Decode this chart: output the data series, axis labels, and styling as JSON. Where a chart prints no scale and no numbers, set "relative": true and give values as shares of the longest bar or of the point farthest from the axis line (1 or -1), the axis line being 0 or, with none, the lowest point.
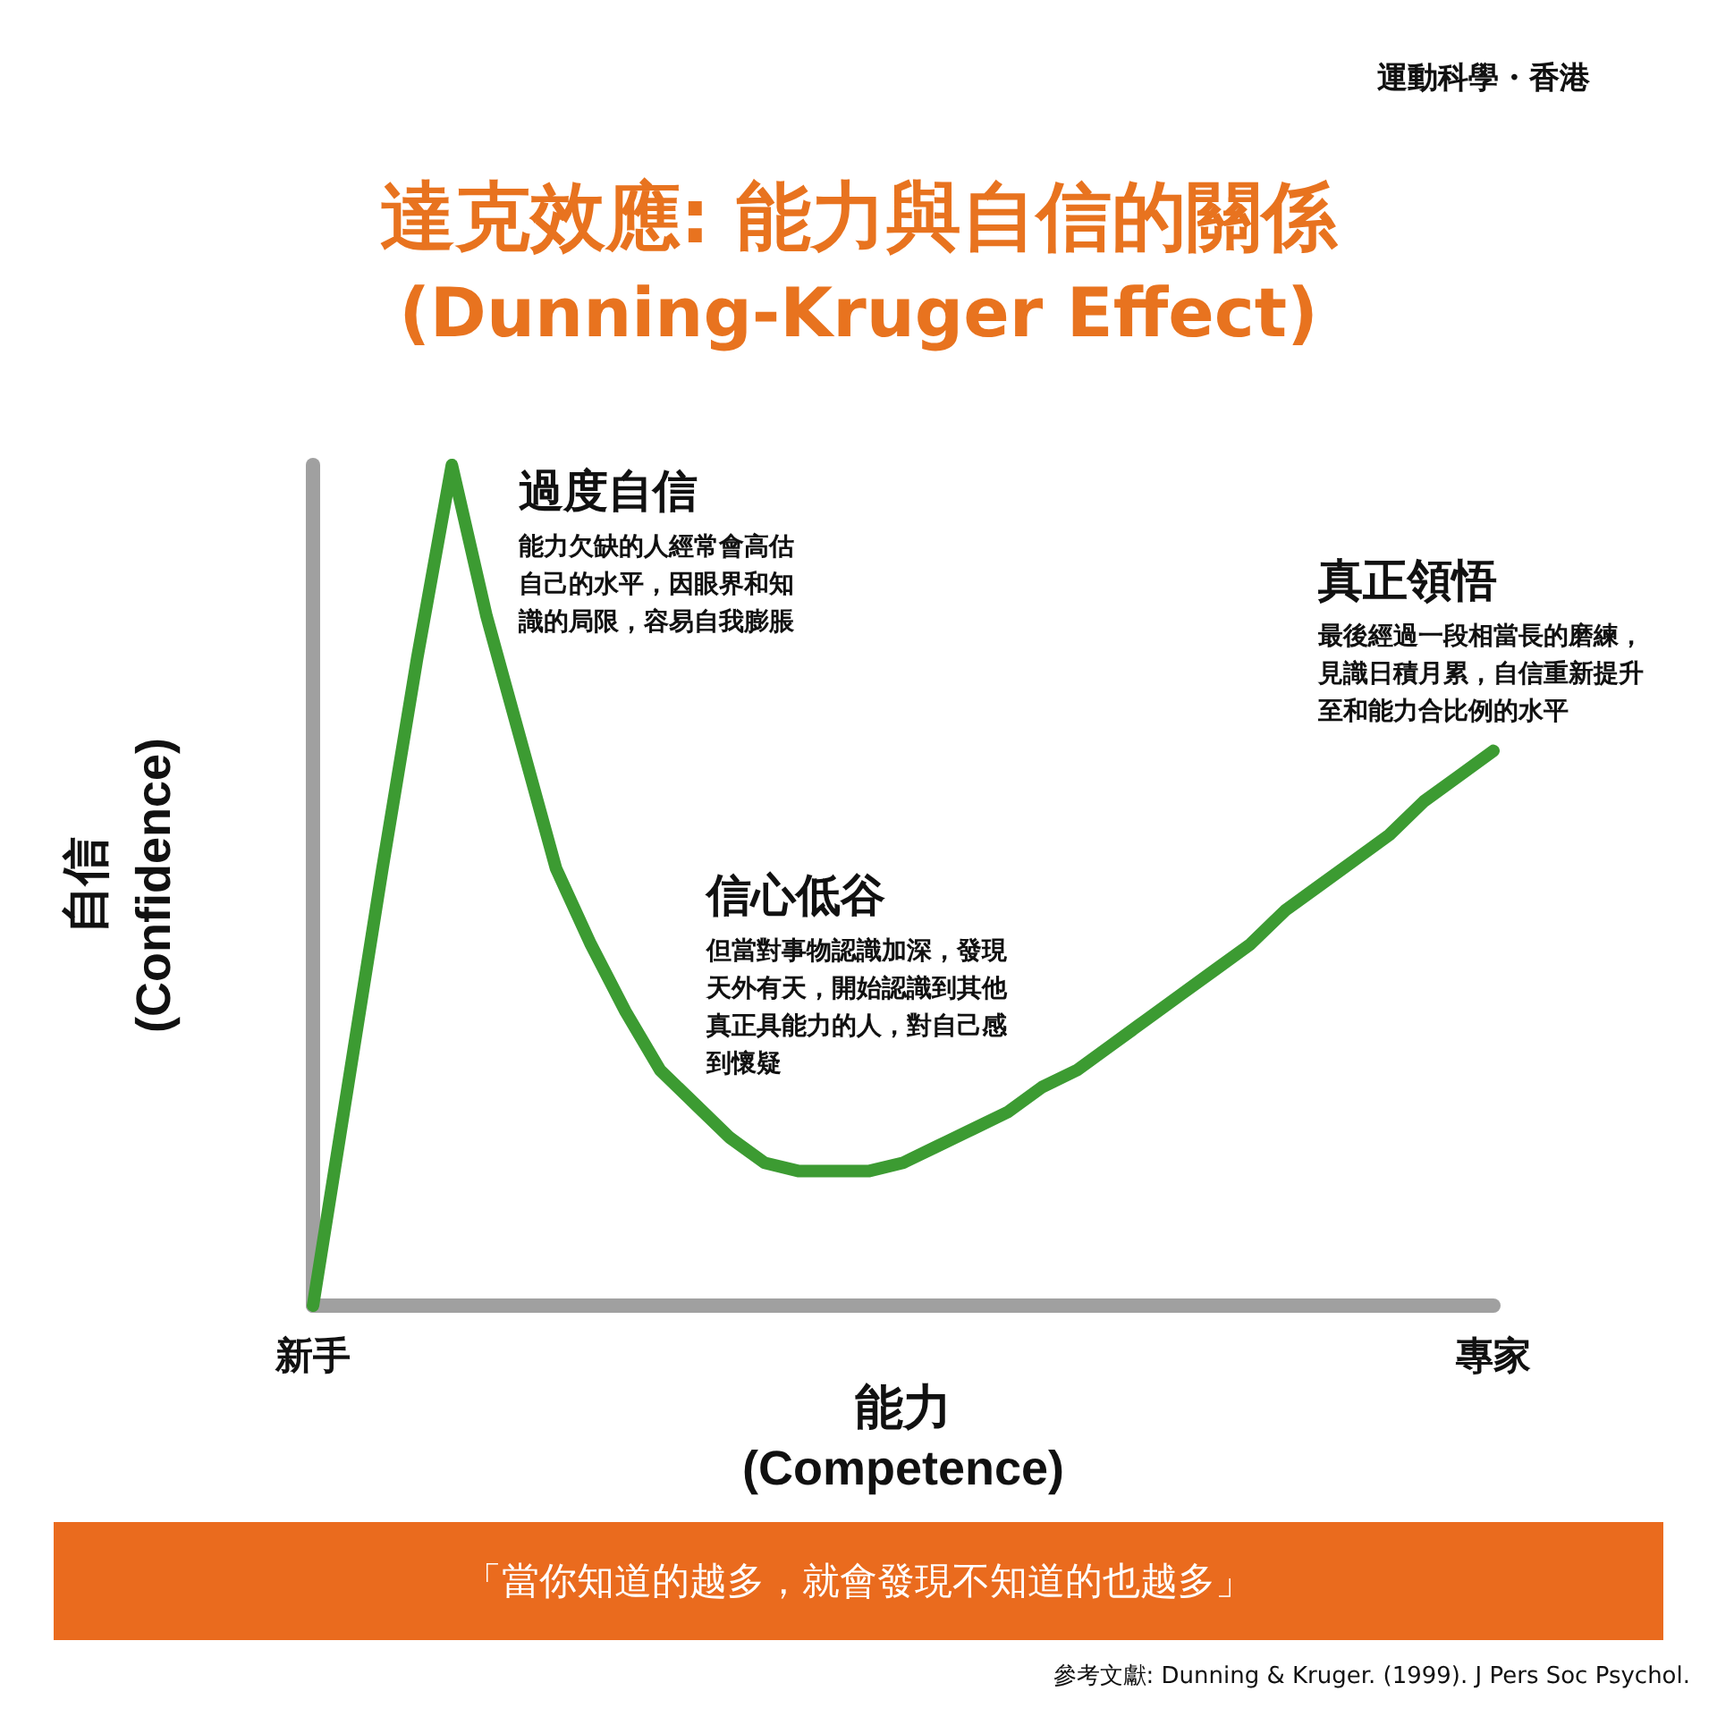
{
  "chart_data": {
    "type": "line",
    "relative": true,
    "title": "達克效應: 能力與自信的關係",
    "subtitle": "(Dunning-Kruger Effect)",
    "xlabel": "能力\n(Competence)",
    "ylabel": "自信\n(Confidence)",
    "categories": [
      "新手",
      null,
      null,
      null,
      null,
      null,
      null,
      null,
      null,
      null,
      null,
      null,
      null,
      null,
      null,
      null,
      null,
      null,
      null,
      null,
      null,
      null,
      null,
      null,
      null,
      null,
      null,
      null,
      null,
      null,
      null,
      null,
      null,
      null,
      "專家"
    ],
    "series": [
      {
        "color": "#3c9b32",
        "values": [
          0,
          0.26,
          0.52,
          0.77,
          1,
          0.82,
          0.67,
          0.52,
          0.43,
          0.35,
          0.28,
          0.24,
          0.2,
          0.17,
          0.16,
          0.16,
          0.16,
          0.17,
          0.19,
          0.21,
          0.23,
          0.26,
          0.28,
          0.31,
          0.34,
          0.37,
          0.4,
          0.43,
          0.47,
          0.5,
          0.53,
          0.56,
          0.6,
          0.63,
          0.66
        ]
      }
    ],
    "line_style": "solid",
    "grid": false,
    "annotations": [
      "運動科學・香港",
      "過度自信",
      "能力欠缺的人經常會高估自己的水平，因眼界和知識的局限，容易自我膨脹",
      "信心低谷",
      "但當對事物認識加深，發現天外有天，開始認識到其他真正具能力的人，對自己感到懷疑",
      "真正領悟",
      "最後經過一段相當長的磨練，見識日積月累，自信重新提升至和能力合比例的水平",
      "「當你知道的越多，就會發現不知道的也越多」",
      "參考文獻: Dunning & Kruger. (1999). J Pers Soc Psychol."
    ]
  }
}
